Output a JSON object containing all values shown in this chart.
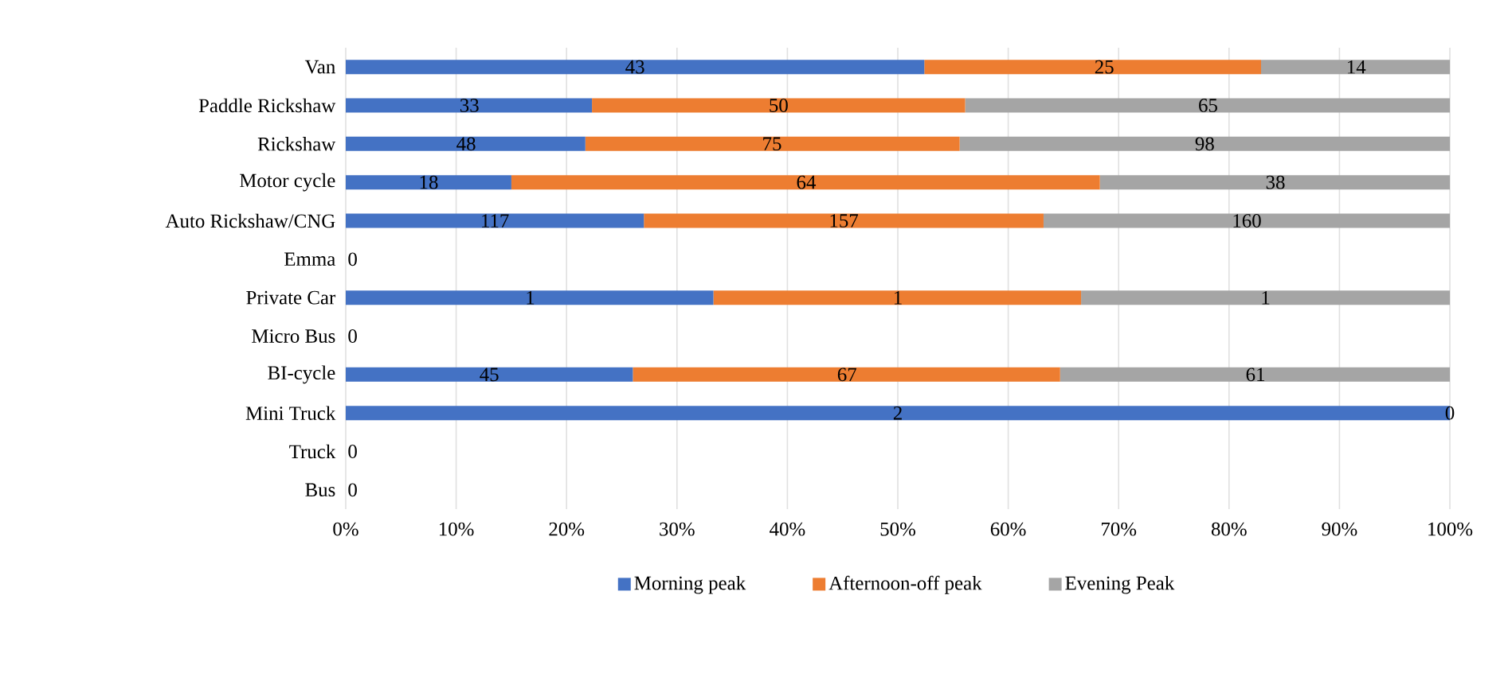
{
  "chart_data": {
    "type": "bar",
    "orientation": "horizontal",
    "stacked": true,
    "categories": [
      "Van",
      "Paddle Rickshaw",
      "Rickshaw",
      "Motor cycle",
      "Auto Rickshaw/CNG",
      "Emma",
      "Private Car",
      "Micro Bus",
      "BI-cycle",
      "Mini Truck",
      "Truck",
      "Bus"
    ],
    "series": [
      {
        "name": "Morning peak",
        "color": "#4472c4",
        "values": [
          52.4,
          22.3,
          21.7,
          15.0,
          27.0,
          0,
          33.3,
          0,
          26.0,
          100,
          0,
          0
        ]
      },
      {
        "name": "Afternoon-off peak",
        "color": "#ed7d31",
        "values": [
          30.5,
          33.8,
          33.9,
          53.3,
          36.2,
          0,
          33.3,
          0,
          38.7,
          0,
          0,
          0
        ]
      },
      {
        "name": "Evening Peak",
        "color": "#a5a5a5",
        "values": [
          17.1,
          43.9,
          44.4,
          31.7,
          36.8,
          0,
          33.4,
          0,
          35.3,
          0,
          0,
          0
        ]
      }
    ],
    "annotations": [
      {
        "text": "43",
        "x": 26.2,
        "y": "Van"
      },
      {
        "text": "25",
        "x": 68.7,
        "y": "Van"
      },
      {
        "text": "14",
        "x": 91.5,
        "y": "Van"
      },
      {
        "text": "33",
        "x": 11.2,
        "y": "Paddle Rickshaw"
      },
      {
        "text": "50",
        "x": 39.2,
        "y": "Paddle Rickshaw"
      },
      {
        "text": "65",
        "x": 78.1,
        "y": "Paddle Rickshaw"
      },
      {
        "text": "48",
        "x": 10.9,
        "y": "Rickshaw"
      },
      {
        "text": "75",
        "x": 38.6,
        "y": "Rickshaw"
      },
      {
        "text": "98",
        "x": 77.8,
        "y": "Rickshaw"
      },
      {
        "text": "18",
        "x": 7.5,
        "y": "Motor cycle"
      },
      {
        "text": "64",
        "x": 41.7,
        "y": "Motor cycle"
      },
      {
        "text": "38",
        "x": 84.2,
        "y": "Motor cycle"
      },
      {
        "text": "117",
        "x": 13.5,
        "y": "Auto Rickshaw/CNG"
      },
      {
        "text": "157",
        "x": 45.1,
        "y": "Auto Rickshaw/CNG"
      },
      {
        "text": "160",
        "x": 81.6,
        "y": "Auto Rickshaw/CNG"
      },
      {
        "text": "0",
        "x": 0,
        "y": "Emma"
      },
      {
        "text": "1",
        "x": 16.7,
        "y": "Private Car"
      },
      {
        "text": "1",
        "x": 50,
        "y": "Private Car"
      },
      {
        "text": "1",
        "x": 83.3,
        "y": "Private Car"
      },
      {
        "text": "0",
        "x": 0,
        "y": "Micro Bus"
      },
      {
        "text": "45",
        "x": 13.0,
        "y": "BI-cycle"
      },
      {
        "text": "67",
        "x": 45.4,
        "y": "BI-cycle"
      },
      {
        "text": "61",
        "x": 82.4,
        "y": "BI-cycle"
      },
      {
        "text": "2",
        "x": 50,
        "y": "Mini Truck"
      },
      {
        "text": "0",
        "x": 100,
        "y": "Mini Truck"
      },
      {
        "text": "0",
        "x": 0,
        "y": "Truck"
      },
      {
        "text": "0",
        "x": 0,
        "y": "Bus"
      }
    ],
    "xlim": [
      0,
      100
    ],
    "xticks": [
      {
        "value": 0,
        "label": "0%"
      },
      {
        "value": 10,
        "label": "10%"
      },
      {
        "value": 20,
        "label": "20%"
      },
      {
        "value": 30,
        "label": "30%"
      },
      {
        "value": 40,
        "label": "40%"
      },
      {
        "value": 50,
        "label": "50%"
      },
      {
        "value": 60,
        "label": "60%"
      },
      {
        "value": 70,
        "label": "70%"
      },
      {
        "value": 80,
        "label": "80%"
      },
      {
        "value": 90,
        "label": "90%"
      },
      {
        "value": 100,
        "label": "100%"
      }
    ],
    "grid": "x",
    "legend": "bottom"
  }
}
